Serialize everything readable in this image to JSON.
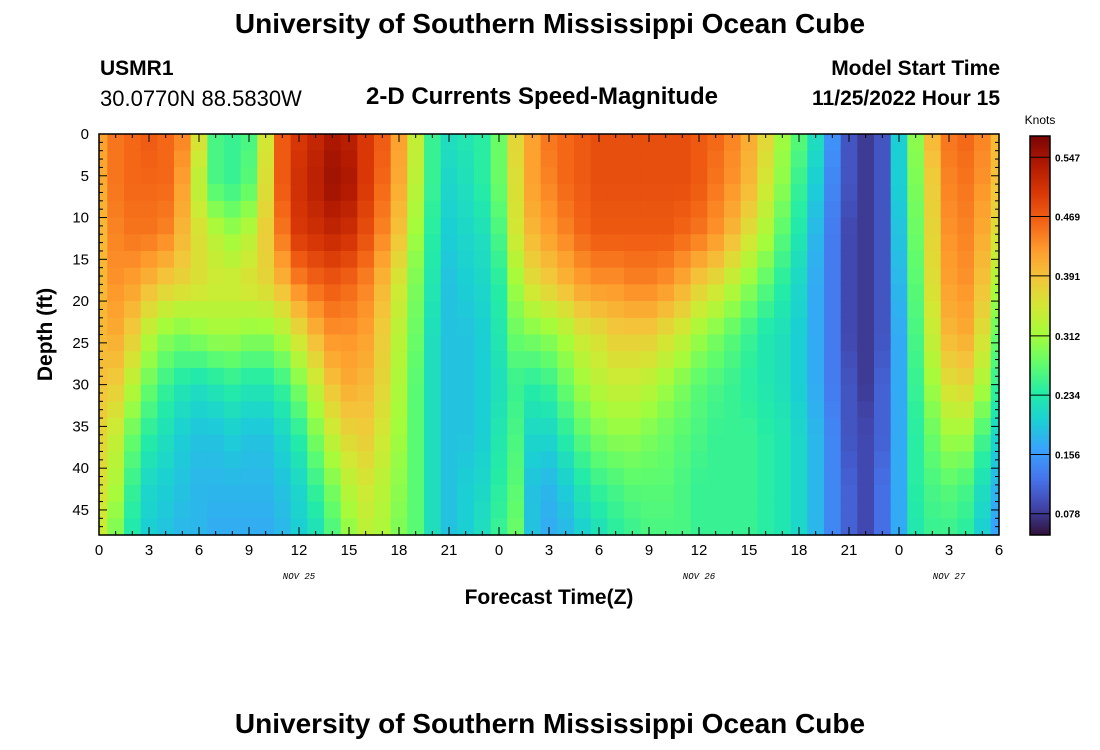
{
  "header": {
    "title": "University of Southern Mississippi Ocean Cube",
    "station_id": "USMR1",
    "coordinates": "30.0770N  88.5830W",
    "plot_title": "2-D Currents Speed-Magnitude",
    "model_start_label": "Model Start Time",
    "model_start_value": "11/25/2022 Hour 15"
  },
  "footer": {
    "title": "University of Southern Mississippi Ocean Cube"
  },
  "chart_data": {
    "type": "heatmap",
    "title": "2-D Currents Speed-Magnitude",
    "xlabel": "Forecast Time(Z)",
    "ylabel": "Depth (ft)",
    "x_range_hours": [
      0,
      54
    ],
    "y_range_ft": [
      0,
      48
    ],
    "x_ticks": [
      {
        "hour": 0,
        "label": "0"
      },
      {
        "hour": 3,
        "label": "3"
      },
      {
        "hour": 6,
        "label": "6"
      },
      {
        "hour": 9,
        "label": "9"
      },
      {
        "hour": 12,
        "label": "12"
      },
      {
        "hour": 15,
        "label": "15"
      },
      {
        "hour": 18,
        "label": "18"
      },
      {
        "hour": 21,
        "label": "21"
      },
      {
        "hour": 24,
        "label": "0"
      },
      {
        "hour": 27,
        "label": "3"
      },
      {
        "hour": 30,
        "label": "6"
      },
      {
        "hour": 33,
        "label": "9"
      },
      {
        "hour": 36,
        "label": "12"
      },
      {
        "hour": 39,
        "label": "15"
      },
      {
        "hour": 42,
        "label": "18"
      },
      {
        "hour": 45,
        "label": "21"
      },
      {
        "hour": 48,
        "label": "0"
      },
      {
        "hour": 51,
        "label": "3"
      },
      {
        "hour": 54,
        "label": "6"
      }
    ],
    "date_labels": [
      {
        "hour": 12,
        "label": "NOV 25"
      },
      {
        "hour": 36,
        "label": "NOV 26"
      },
      {
        "hour": 51,
        "label": "NOV 27"
      }
    ],
    "y_ticks": [
      0,
      5,
      10,
      15,
      20,
      25,
      30,
      35,
      40,
      45
    ],
    "colorbar": {
      "label": "Knots",
      "ticks": [
        "0.547",
        "0.469",
        "0.391",
        "0.312",
        "0.234",
        "0.156",
        "0.078"
      ],
      "range": [
        0.05,
        0.575
      ],
      "stops": [
        "#30123b",
        "#4145ab",
        "#4675ed",
        "#39a2fc",
        "#1bcfd4",
        "#24eca6",
        "#61fc6c",
        "#a4fc3b",
        "#d1e834",
        "#f3c63a",
        "#fe9b2d",
        "#f36315",
        "#d93806",
        "#b11901",
        "#7a0403"
      ]
    },
    "depth_levels_ft": [
      0,
      6,
      12,
      18,
      24,
      30,
      36,
      42,
      48
    ],
    "time_hours": [
      0,
      1,
      2,
      3,
      4,
      5,
      6,
      7,
      8,
      9,
      10,
      11,
      12,
      13,
      14,
      15,
      16,
      17,
      18,
      19,
      20,
      21,
      22,
      23,
      24,
      25,
      26,
      27,
      28,
      29,
      30,
      31,
      32,
      33,
      34,
      35,
      36,
      37,
      38,
      39,
      40,
      41,
      42,
      43,
      44,
      45,
      46,
      47,
      48,
      49,
      50,
      51,
      52,
      53,
      54
    ],
    "speed_knots": [
      [
        0.42,
        0.45,
        0.46,
        0.47,
        0.46,
        0.44,
        0.36,
        0.26,
        0.25,
        0.26,
        0.35,
        0.47,
        0.5,
        0.52,
        0.54,
        0.53,
        0.5,
        0.47,
        0.42,
        0.34,
        0.25,
        0.22,
        0.23,
        0.24,
        0.28,
        0.37,
        0.42,
        0.45,
        0.46,
        0.47,
        0.48,
        0.48,
        0.48,
        0.48,
        0.48,
        0.48,
        0.47,
        0.46,
        0.44,
        0.41,
        0.37,
        0.31,
        0.27,
        0.22,
        0.15,
        0.1,
        0.08,
        0.1,
        0.2,
        0.3,
        0.4,
        0.45,
        0.46,
        0.44,
        0.4
      ],
      [
        0.41,
        0.45,
        0.46,
        0.46,
        0.46,
        0.42,
        0.33,
        0.26,
        0.25,
        0.27,
        0.36,
        0.47,
        0.51,
        0.53,
        0.55,
        0.54,
        0.5,
        0.46,
        0.41,
        0.33,
        0.25,
        0.21,
        0.22,
        0.24,
        0.28,
        0.36,
        0.42,
        0.44,
        0.46,
        0.47,
        0.48,
        0.48,
        0.48,
        0.48,
        0.48,
        0.48,
        0.47,
        0.45,
        0.43,
        0.4,
        0.35,
        0.3,
        0.25,
        0.2,
        0.14,
        0.1,
        0.08,
        0.1,
        0.2,
        0.29,
        0.38,
        0.44,
        0.45,
        0.43,
        0.39
      ],
      [
        0.4,
        0.44,
        0.45,
        0.45,
        0.44,
        0.4,
        0.36,
        0.33,
        0.31,
        0.33,
        0.38,
        0.45,
        0.5,
        0.51,
        0.52,
        0.51,
        0.48,
        0.44,
        0.39,
        0.31,
        0.24,
        0.2,
        0.21,
        0.22,
        0.26,
        0.35,
        0.4,
        0.42,
        0.44,
        0.46,
        0.47,
        0.47,
        0.47,
        0.47,
        0.47,
        0.46,
        0.45,
        0.43,
        0.4,
        0.36,
        0.32,
        0.27,
        0.23,
        0.18,
        0.13,
        0.09,
        0.08,
        0.1,
        0.19,
        0.28,
        0.37,
        0.43,
        0.44,
        0.41,
        0.36
      ],
      [
        0.4,
        0.43,
        0.42,
        0.4,
        0.38,
        0.37,
        0.36,
        0.35,
        0.35,
        0.36,
        0.37,
        0.4,
        0.44,
        0.46,
        0.47,
        0.46,
        0.44,
        0.4,
        0.35,
        0.29,
        0.23,
        0.19,
        0.2,
        0.21,
        0.24,
        0.31,
        0.36,
        0.38,
        0.4,
        0.42,
        0.43,
        0.43,
        0.44,
        0.44,
        0.43,
        0.41,
        0.38,
        0.36,
        0.33,
        0.3,
        0.27,
        0.24,
        0.21,
        0.17,
        0.13,
        0.09,
        0.08,
        0.1,
        0.18,
        0.27,
        0.36,
        0.42,
        0.43,
        0.39,
        0.32
      ],
      [
        0.4,
        0.41,
        0.38,
        0.33,
        0.3,
        0.29,
        0.3,
        0.31,
        0.31,
        0.3,
        0.3,
        0.32,
        0.36,
        0.4,
        0.43,
        0.43,
        0.42,
        0.38,
        0.33,
        0.28,
        0.22,
        0.19,
        0.19,
        0.2,
        0.23,
        0.28,
        0.29,
        0.3,
        0.32,
        0.35,
        0.36,
        0.38,
        0.38,
        0.38,
        0.36,
        0.34,
        0.31,
        0.29,
        0.27,
        0.25,
        0.23,
        0.22,
        0.2,
        0.17,
        0.13,
        0.09,
        0.08,
        0.1,
        0.17,
        0.26,
        0.34,
        0.4,
        0.41,
        0.36,
        0.28
      ],
      [
        0.39,
        0.38,
        0.33,
        0.28,
        0.25,
        0.23,
        0.22,
        0.23,
        0.24,
        0.23,
        0.23,
        0.25,
        0.29,
        0.34,
        0.39,
        0.41,
        0.4,
        0.37,
        0.32,
        0.27,
        0.22,
        0.19,
        0.19,
        0.2,
        0.22,
        0.25,
        0.24,
        0.25,
        0.28,
        0.31,
        0.33,
        0.34,
        0.34,
        0.33,
        0.31,
        0.29,
        0.27,
        0.26,
        0.25,
        0.24,
        0.23,
        0.22,
        0.2,
        0.17,
        0.13,
        0.1,
        0.08,
        0.11,
        0.17,
        0.25,
        0.31,
        0.36,
        0.37,
        0.32,
        0.25
      ],
      [
        0.37,
        0.34,
        0.28,
        0.24,
        0.22,
        0.2,
        0.19,
        0.19,
        0.2,
        0.19,
        0.19,
        0.21,
        0.24,
        0.29,
        0.34,
        0.37,
        0.38,
        0.35,
        0.31,
        0.27,
        0.22,
        0.19,
        0.19,
        0.2,
        0.23,
        0.26,
        0.21,
        0.21,
        0.24,
        0.27,
        0.29,
        0.3,
        0.3,
        0.29,
        0.28,
        0.27,
        0.26,
        0.25,
        0.25,
        0.25,
        0.24,
        0.23,
        0.21,
        0.18,
        0.14,
        0.1,
        0.09,
        0.11,
        0.17,
        0.24,
        0.28,
        0.31,
        0.31,
        0.26,
        0.21
      ],
      [
        0.36,
        0.32,
        0.25,
        0.21,
        0.2,
        0.19,
        0.18,
        0.18,
        0.18,
        0.18,
        0.18,
        0.19,
        0.21,
        0.25,
        0.29,
        0.33,
        0.35,
        0.33,
        0.3,
        0.27,
        0.22,
        0.19,
        0.2,
        0.21,
        0.24,
        0.27,
        0.19,
        0.18,
        0.2,
        0.23,
        0.25,
        0.26,
        0.27,
        0.27,
        0.27,
        0.26,
        0.25,
        0.25,
        0.25,
        0.25,
        0.24,
        0.23,
        0.21,
        0.18,
        0.14,
        0.11,
        0.09,
        0.12,
        0.17,
        0.24,
        0.26,
        0.27,
        0.26,
        0.22,
        0.18
      ],
      [
        0.34,
        0.29,
        0.23,
        0.2,
        0.19,
        0.18,
        0.18,
        0.17,
        0.17,
        0.17,
        0.17,
        0.18,
        0.2,
        0.22,
        0.26,
        0.3,
        0.33,
        0.32,
        0.29,
        0.27,
        0.22,
        0.19,
        0.2,
        0.22,
        0.25,
        0.28,
        0.19,
        0.17,
        0.18,
        0.2,
        0.22,
        0.24,
        0.25,
        0.26,
        0.26,
        0.26,
        0.25,
        0.25,
        0.25,
        0.25,
        0.24,
        0.23,
        0.21,
        0.18,
        0.14,
        0.11,
        0.09,
        0.12,
        0.17,
        0.23,
        0.25,
        0.25,
        0.24,
        0.2,
        0.16
      ]
    ]
  }
}
